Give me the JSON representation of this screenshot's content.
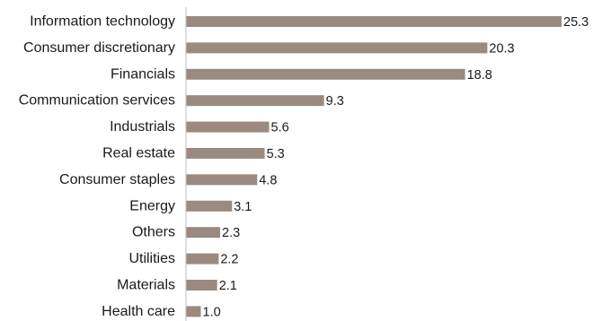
{
  "chart_data": {
    "type": "bar",
    "orientation": "horizontal",
    "categories": [
      "Information technology",
      "Consumer discretionary",
      "Financials",
      "Communication services",
      "Industrials",
      "Real estate",
      "Consumer staples",
      "Energy",
      "Others",
      "Utilities",
      "Materials",
      "Health care"
    ],
    "values": [
      25.3,
      20.3,
      18.8,
      9.3,
      5.6,
      5.3,
      4.8,
      3.1,
      2.3,
      2.2,
      2.1,
      1.0
    ],
    "value_labels": [
      "25.3",
      "20.3",
      "18.8",
      "9.3",
      "5.6",
      "5.3",
      "4.8",
      "3.1",
      "2.3",
      "2.2",
      "2.1",
      "1.0"
    ],
    "xlim": [
      0,
      25.3
    ],
    "grid": false,
    "legend": "none",
    "colors": {
      "bar": "#9a8a80",
      "axis": "#bfbfbf",
      "text": "#1a1a1a"
    }
  }
}
